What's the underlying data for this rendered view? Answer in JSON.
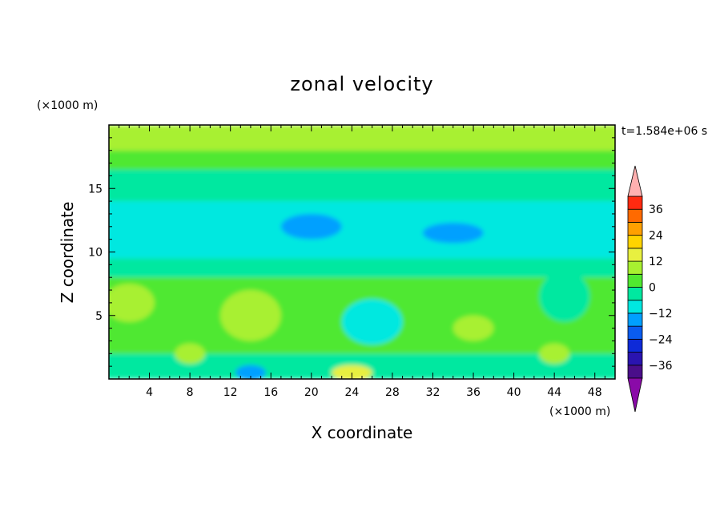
{
  "chart_data": {
    "type": "heatmap",
    "title": "zonal velocity",
    "xlabel": "X coordinate",
    "ylabel": "Z coordinate",
    "x_unit": "(×1000 m)",
    "y_unit": "(×1000 m)",
    "time_label": "t=1.584e+06 s",
    "xlim": [
      0,
      50
    ],
    "ylim": [
      0,
      20
    ],
    "x_ticks": [
      4,
      8,
      12,
      16,
      20,
      24,
      28,
      32,
      36,
      40,
      44,
      48
    ],
    "x_tick_labels": [
      "4",
      "8",
      "12",
      "16",
      "20",
      "24",
      "28",
      "32",
      "36",
      "40",
      "44",
      "48"
    ],
    "y_ticks": [
      5,
      10,
      15
    ],
    "y_tick_labels": [
      "5",
      "10",
      "15"
    ],
    "colorbar": {
      "levels": [
        -42,
        -36,
        -30,
        -24,
        -18,
        -12,
        -6,
        0,
        6,
        12,
        18,
        24,
        30,
        36,
        42
      ],
      "tick_values": [
        -36,
        -24,
        -12,
        0,
        12,
        24,
        36
      ],
      "tick_labels": [
        "−36",
        "−24",
        "−12",
        "0",
        "12",
        "24",
        "36"
      ],
      "colors": [
        "#4a0e8a",
        "#2a14b0",
        "#0e2ad8",
        "#0a5cf0",
        "#00a0ff",
        "#00e8e0",
        "#00e8a0",
        "#50e830",
        "#a8f030",
        "#e8f040",
        "#ffd400",
        "#ffa000",
        "#ff6a00",
        "#ff2a10"
      ],
      "under_color": "#8a0aa8",
      "over_color": "#ffb0b0"
    },
    "bands": [
      {
        "z_min": 0,
        "z_max": 2,
        "value": -6
      },
      {
        "z_min": 2,
        "z_max": 8,
        "value": 0
      },
      {
        "z_min": 8,
        "z_max": 9.5,
        "value": -6
      },
      {
        "z_min": 9.5,
        "z_max": 14,
        "value": -12
      },
      {
        "z_min": 14,
        "z_max": 16.5,
        "value": -6
      },
      {
        "z_min": 16.5,
        "z_max": 18,
        "value": 0
      },
      {
        "z_min": 18,
        "z_max": 20,
        "value": 6
      }
    ],
    "blobs": [
      {
        "x": 2,
        "z": 6,
        "rx": 2.5,
        "rz": 1.5,
        "value": 6
      },
      {
        "x": 14,
        "z": 5,
        "rx": 3,
        "rz": 2,
        "value": 6
      },
      {
        "x": 8,
        "z": 2,
        "rx": 1.5,
        "rz": 0.8,
        "value": 6
      },
      {
        "x": 26,
        "z": 4.5,
        "rx": 3,
        "rz": 1.8,
        "value": -12
      },
      {
        "x": 24,
        "z": 0.5,
        "rx": 2,
        "rz": 0.6,
        "value": 12
      },
      {
        "x": 14,
        "z": 0.5,
        "rx": 1.5,
        "rz": 0.6,
        "value": -18
      },
      {
        "x": 36,
        "z": 4,
        "rx": 2,
        "rz": 1,
        "value": 6
      },
      {
        "x": 45,
        "z": 6.5,
        "rx": 2.5,
        "rz": 2,
        "value": -6
      },
      {
        "x": 44,
        "z": 2,
        "rx": 1.5,
        "rz": 0.8,
        "value": 6
      },
      {
        "x": 20,
        "z": 12,
        "rx": 3,
        "rz": 1,
        "value": -18
      },
      {
        "x": 34,
        "z": 11.5,
        "rx": 3,
        "rz": 0.8,
        "value": -18
      }
    ]
  }
}
